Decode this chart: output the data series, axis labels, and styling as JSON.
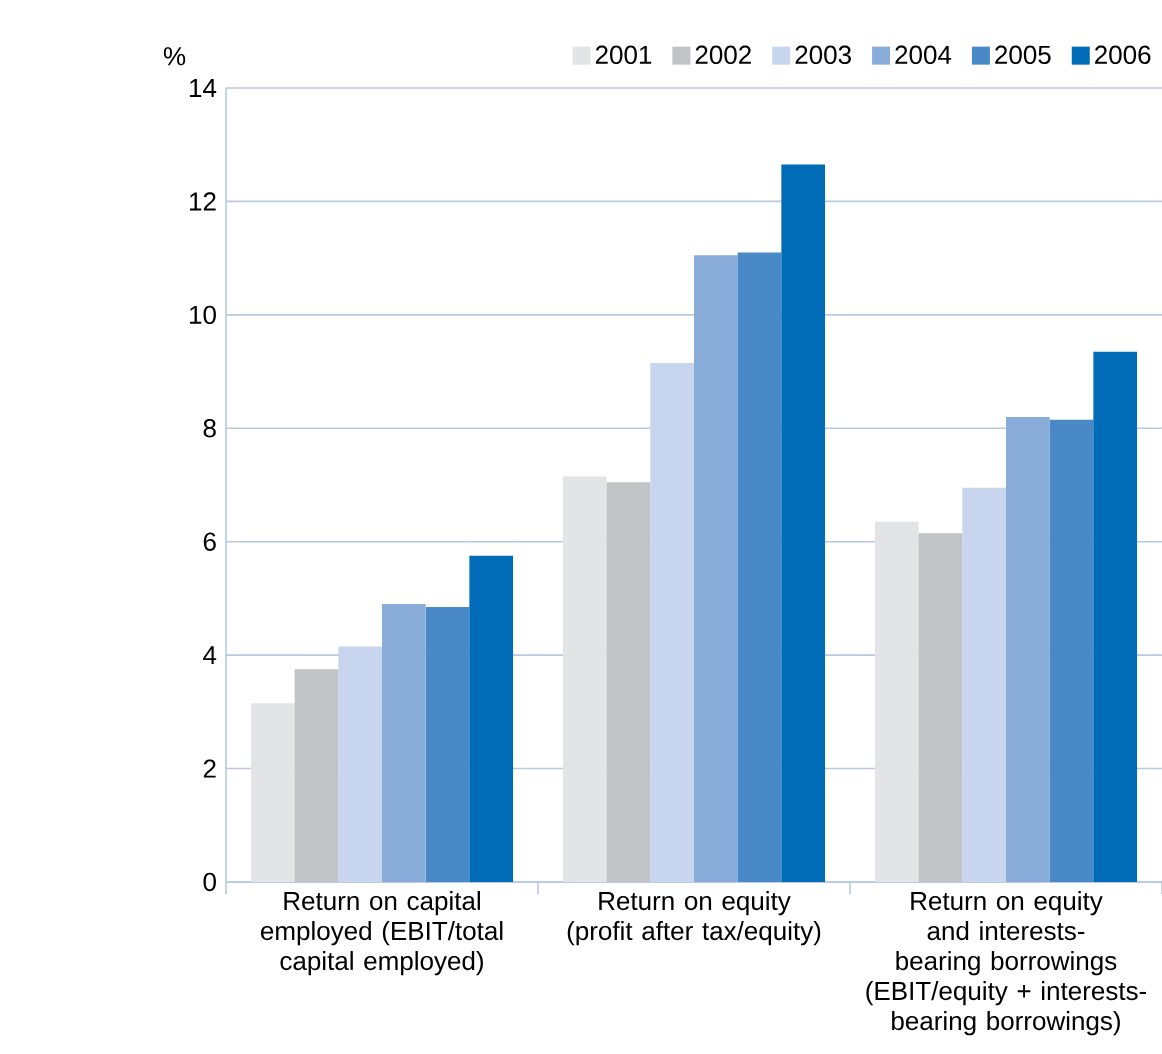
{
  "chart_data": {
    "type": "bar",
    "ylabel": "%",
    "categories": [
      "Return on capital employed (EBIT/total capital employed)",
      "Return on equity (profit after tax/equity)",
      "Return on equity and interests-bearing borrowings (EBIT/equity + interests-bearing borrowings)"
    ],
    "series": [
      {
        "name": "2001",
        "color": "#e3e4e6",
        "values": [
          3.15,
          7.15,
          6.35
        ]
      },
      {
        "name": "2002",
        "color": "#c1c3c6",
        "values": [
          3.75,
          7.05,
          6.15
        ]
      },
      {
        "name": "2003",
        "color": "#c7d5ee",
        "values": [
          4.15,
          9.15,
          6.95
        ]
      },
      {
        "name": "2004",
        "color": "#8aacd9",
        "values": [
          4.9,
          11.05,
          8.2
        ]
      },
      {
        "name": "2005",
        "color": "#4a89c8",
        "values": [
          4.85,
          11.1,
          8.15
        ]
      },
      {
        "name": "2006",
        "color": "#006bb6",
        "values": [
          5.75,
          12.65,
          9.35
        ]
      }
    ],
    "ylim": [
      0,
      14
    ],
    "yticks": [
      0,
      2,
      4,
      6,
      8,
      10,
      12,
      14
    ],
    "grid": "y",
    "legend": "top right"
  }
}
